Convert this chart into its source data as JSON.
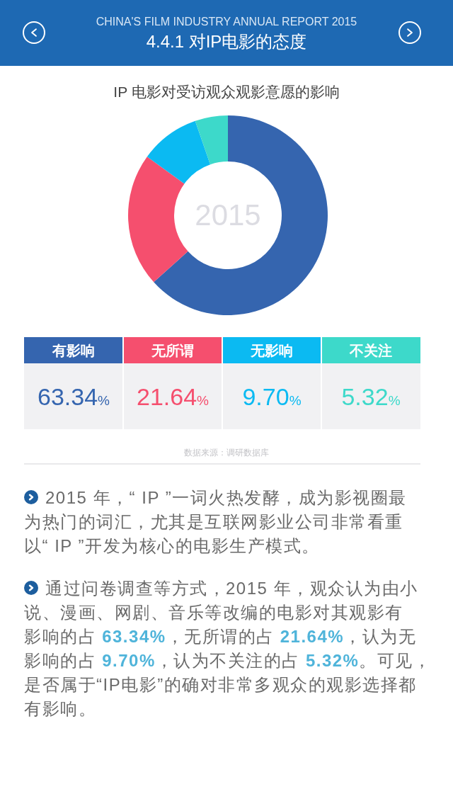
{
  "chart_data": {
    "type": "donut",
    "title": "4.4.1 对IP电影的态度",
    "subtitle": "IP 电影对受访观众观影意愿的影响",
    "categories": [
      "有影响",
      "无所谓",
      "无影响",
      "不关注"
    ],
    "values": [
      63.34,
      21.64,
      9.7,
      5.32
    ],
    "colors": [
      "#3565af",
      "#f54f6e",
      "#0bbaf2",
      "#3dd9ca"
    ],
    "value_labels": [
      "63.34%",
      "21.64%",
      "9.70%",
      "5.32%"
    ],
    "legend": "bottom",
    "annotations": [
      "CHINA'S FILM INDUSTRY ANNUAL REPORT 2015",
      "2015",
      "数据来源：调研数据库",
      "2015 年，“ IP ”一词火热发酵，成为影视圈最为热门的词汇，尤其是互联网影业公司非常看重以“ IP ”开发为核心的电影生产模式。",
      "通过问卷调查等方式，2015 年，观众认为由小说、漫画、网剧、音乐等改编的电影对其观影有影响的占 63.34%，无所谓的占 21.64%，认为无影响的占 9.70%，认为不关注的占 5.32%。可见，是否属于“IP电影”的确对非常多观众的观影选择都有影响。"
    ]
  }
}
